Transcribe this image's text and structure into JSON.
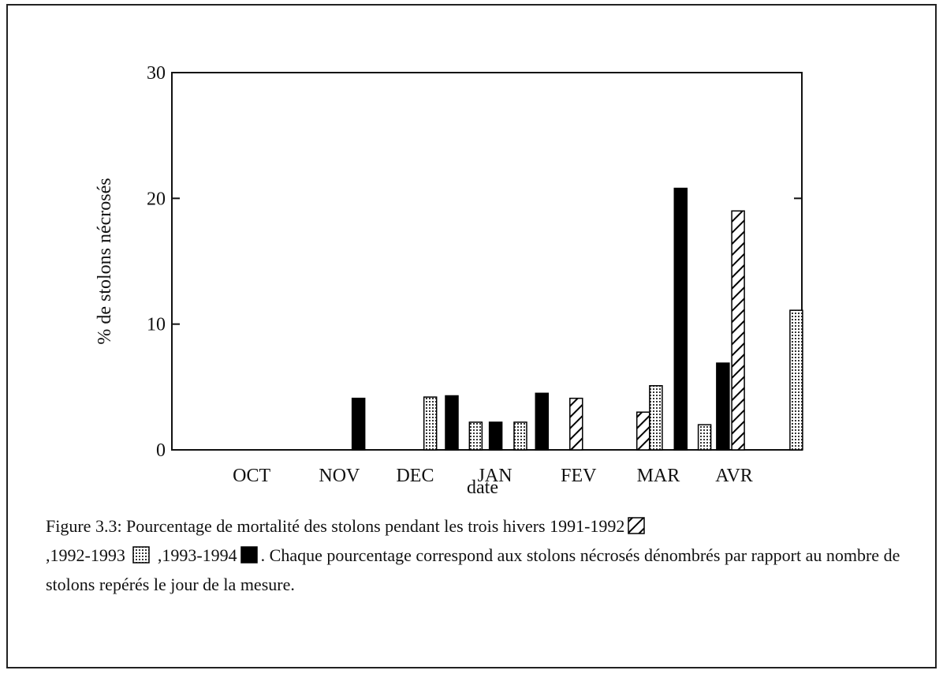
{
  "chart_data": {
    "type": "bar",
    "ylabel": "% de stolons nécrosés",
    "xlabel": "date",
    "ylim": [
      0,
      30
    ],
    "yticks": [
      0,
      10,
      20,
      30
    ],
    "xlim": [
      0,
      7.9
    ],
    "xticks": [
      {
        "value": 1,
        "label": "OCT"
      },
      {
        "value": 2.1,
        "label": "NOV"
      },
      {
        "value": 3.05,
        "label": "DEC"
      },
      {
        "value": 4.05,
        "label": "JAN"
      },
      {
        "value": 5.1,
        "label": "FEV"
      },
      {
        "value": 6.1,
        "label": "MAR"
      },
      {
        "value": 7.05,
        "label": "AVR"
      }
    ],
    "series": [
      {
        "name": "1991-1992",
        "color": "#000000",
        "pattern": "hatch",
        "x": [
          5.07,
          5.91,
          7.1
        ],
        "values": [
          4.1,
          3.0,
          19.0
        ]
      },
      {
        "name": "1992-1993",
        "color": "#000000",
        "pattern": "dots",
        "x": [
          3.24,
          3.81,
          4.37,
          6.07,
          6.68,
          7.83
        ],
        "values": [
          4.2,
          2.2,
          2.2,
          5.1,
          2.0,
          11.1
        ]
      },
      {
        "name": "1993-1994",
        "color": "#000000",
        "pattern": "solid",
        "x": [
          2.34,
          3.51,
          4.06,
          4.64,
          6.38,
          6.91
        ],
        "values": [
          4.1,
          4.3,
          2.2,
          4.5,
          20.8,
          6.9
        ]
      }
    ],
    "caption": [
      "Figure 3.3: Pourcentage de mortalité des stolons pendant les trois hivers",
      ",",
      ",",
      ". Chaque pourcentage correspond aux stolons nécrosés dénombrés par rapport au nombre de stolons repérés le jour de la mesure."
    ]
  }
}
